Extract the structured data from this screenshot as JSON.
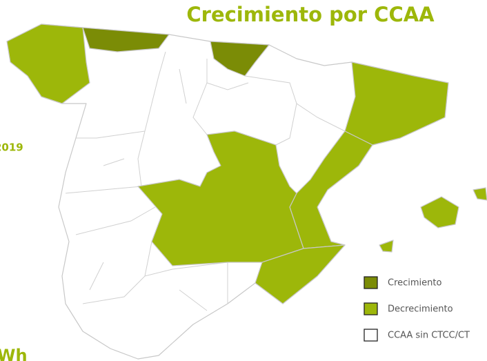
{
  "title": "Crecimiento por CCAA",
  "annotations": [
    "2019",
    "Wh"
  ],
  "legend": [
    {
      "label": "Crecimiento",
      "color": "#7b8c06"
    },
    {
      "label": "Decrecimiento",
      "color": "#9db70a"
    },
    {
      "label": "CCAA sin CTCC/CT",
      "color": "#ffffff"
    }
  ]
}
